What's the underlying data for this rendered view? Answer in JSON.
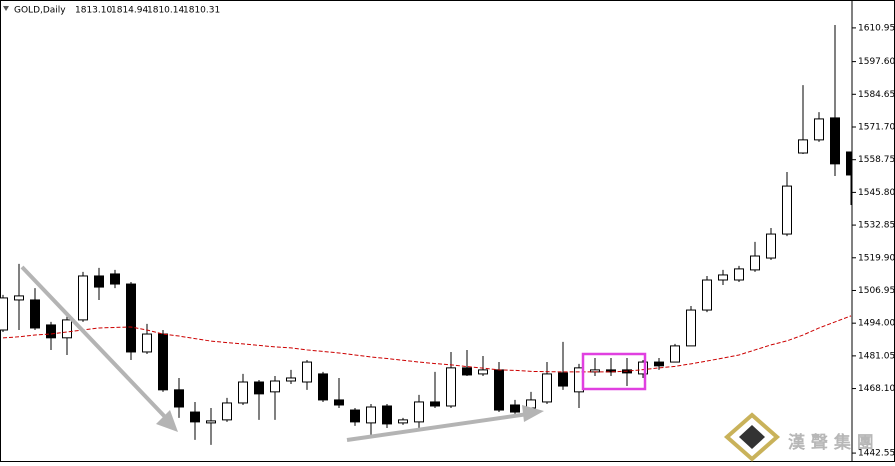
{
  "chart_data": {
    "type": "candlestick",
    "title": "GOLD,Daily",
    "ohlc": [
      "1813.10",
      "1814.94",
      "1810.14",
      "1810.31"
    ],
    "watermark": "漢 聲 集 團",
    "open": [
      1491.3,
      1503.2,
      1503.2,
      1493.3,
      1488.2,
      1495.3,
      1512.7,
      1513.5,
      1509.5,
      1482.6,
      1489.7,
      1467.6,
      1458.8,
      1454.5,
      1455.7,
      1462.4,
      1470.7,
      1466.8,
      1471.1,
      1470.7,
      1473.9,
      1463.6,
      1459.6,
      1454.5,
      1461.2,
      1454.5,
      1454.9,
      1462.8,
      1461.2,
      1476.3,
      1473.9,
      1475.5,
      1461.6,
      1460.4,
      1462.8,
      1474.3,
      1466.8,
      1474.7,
      1475.5,
      1475.5,
      1473.9,
      1478.6,
      1478.6,
      1485.0,
      1499.2,
      1511.1,
      1511.1,
      1515.1,
      1519.8,
      1529.3,
      1561.4,
      1566.6,
      1575.3,
      1561.8
    ],
    "high": [
      1505.2,
      1517.5,
      1507.9,
      1494.5,
      1496.9,
      1514.3,
      1515.9,
      1515.1,
      1510.3,
      1493.7,
      1491.3,
      1472.3,
      1462.8,
      1460.4,
      1464.4,
      1473.9,
      1471.5,
      1473.1,
      1475.5,
      1479.4,
      1474.7,
      1472.3,
      1460.4,
      1462.0,
      1462.0,
      1456.5,
      1465.6,
      1474.7,
      1482.6,
      1483.4,
      1481.0,
      1478.6,
      1463.6,
      1466.8,
      1478.6,
      1486.6,
      1477.9,
      1480.2,
      1480.2,
      1480.2,
      1479.4,
      1480.2,
      1485.8,
      1500.8,
      1512.7,
      1515.1,
      1516.7,
      1526.2,
      1531.7,
      1553.9,
      1588.3,
      1577.6,
      1612.1,
      1561.8
    ],
    "low": [
      1490.5,
      1491.3,
      1491.3,
      1483.4,
      1481.4,
      1494.5,
      1503.2,
      1507.9,
      1479.4,
      1481.8,
      1466.8,
      1456.5,
      1447.8,
      1445.8,
      1454.9,
      1461.6,
      1455.7,
      1455.7,
      1469.9,
      1467.6,
      1462.8,
      1460.4,
      1453.3,
      1449.7,
      1452.5,
      1453.7,
      1452.5,
      1460.4,
      1460.4,
      1473.1,
      1473.1,
      1458.8,
      1458.1,
      1459.6,
      1462.0,
      1467.6,
      1460.4,
      1473.1,
      1473.1,
      1469.1,
      1472.3,
      1475.5,
      1478.6,
      1485.0,
      1498.4,
      1509.1,
      1510.3,
      1514.3,
      1519.0,
      1528.5,
      1561.0,
      1565.8,
      1552.3,
      1540.8
    ],
    "close": [
      1504.0,
      1504.8,
      1492.1,
      1488.2,
      1495.3,
      1512.7,
      1508.3,
      1509.5,
      1482.6,
      1489.7,
      1467.6,
      1460.8,
      1454.9,
      1455.3,
      1462.4,
      1470.7,
      1466.0,
      1471.1,
      1472.3,
      1478.6,
      1463.6,
      1461.6,
      1454.9,
      1460.8,
      1454.1,
      1455.7,
      1462.8,
      1461.2,
      1476.3,
      1473.5,
      1475.5,
      1459.6,
      1458.8,
      1463.6,
      1473.9,
      1469.1,
      1476.3,
      1475.5,
      1474.7,
      1474.3,
      1478.6,
      1477.1,
      1485.0,
      1499.2,
      1511.1,
      1513.1,
      1515.5,
      1520.6,
      1529.3,
      1548.3,
      1566.6,
      1574.9,
      1557.1,
      1552.7
    ],
    "ma": {
      "color": "#cc0000",
      "values": [
        1488.2,
        1488.6,
        1489.3,
        1489.7,
        1490.5,
        1491.3,
        1492.1,
        1492.3,
        1492.5,
        1491.3,
        1489.7,
        1488.9,
        1487.9,
        1486.9,
        1486.3,
        1485.8,
        1485.2,
        1484.6,
        1484.2,
        1483.4,
        1482.8,
        1482.2,
        1481.4,
        1480.6,
        1480.0,
        1479.3,
        1478.6,
        1478.0,
        1477.5,
        1476.8,
        1476.2,
        1475.5,
        1475.3,
        1474.9,
        1474.8,
        1474.7,
        1474.7,
        1474.7,
        1474.7,
        1475.0,
        1475.6,
        1476.3,
        1476.9,
        1477.9,
        1479.0,
        1480.2,
        1481.4,
        1483.4,
        1485.4,
        1487.0,
        1489.3,
        1492.1,
        1494.5,
        1496.9
      ]
    },
    "up_color": "#ffffff",
    "down_color": "#000000",
    "ylim": [
      1440.6,
      1622.0
    ],
    "yticks": [
      1610.95,
      {
        "value": 1597.6,
        "label": "1597.60"
      },
      1584.65,
      {
        "value": 1571.7,
        "label": "1571.70"
      },
      1558.75,
      {
        "value": 1545.8,
        "label": "1545.80"
      },
      1532.85,
      {
        "value": 1519.9,
        "label": "1519.90"
      },
      1506.95,
      {
        "value": 1494.0,
        "label": "1494.00"
      },
      1481.05,
      {
        "value": 1468.1,
        "label": "1468.10"
      },
      1442.55
    ]
  }
}
